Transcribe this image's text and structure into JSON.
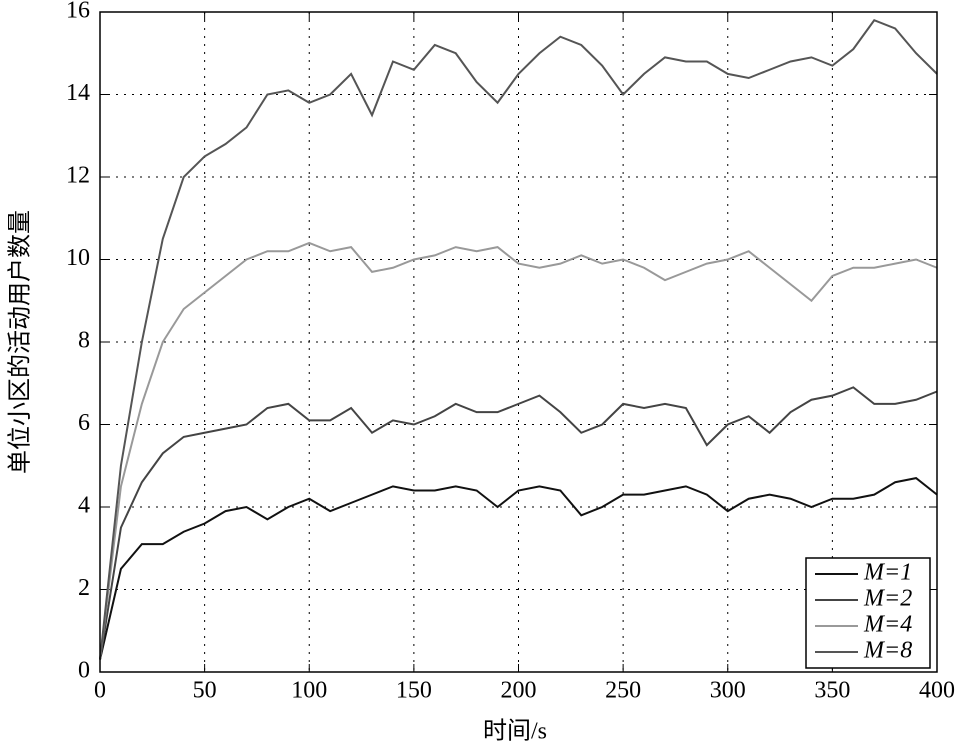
{
  "chart_data": {
    "type": "line",
    "xlabel": "时间/s",
    "ylabel": "单位小区的活动用户数量",
    "x": [
      0,
      10,
      20,
      30,
      40,
      50,
      60,
      70,
      80,
      90,
      100,
      110,
      120,
      130,
      140,
      150,
      160,
      170,
      180,
      190,
      200,
      210,
      220,
      230,
      240,
      250,
      260,
      270,
      280,
      290,
      300,
      310,
      320,
      330,
      340,
      350,
      360,
      370,
      380,
      390,
      400
    ],
    "series": [
      {
        "name": "M=1",
        "color": "#111111",
        "values": [
          0.3,
          2.5,
          3.1,
          3.1,
          3.4,
          3.6,
          3.9,
          4.0,
          3.7,
          4.0,
          4.2,
          3.9,
          4.1,
          4.3,
          4.5,
          4.4,
          4.4,
          4.5,
          4.4,
          4.0,
          4.4,
          4.5,
          4.4,
          3.8,
          4.0,
          4.3,
          4.3,
          4.4,
          4.5,
          4.3,
          3.9,
          4.2,
          4.3,
          4.2,
          4.0,
          4.2,
          4.2,
          4.3,
          4.6,
          4.7,
          4.3
        ]
      },
      {
        "name": "M=2",
        "color": "#444444",
        "values": [
          0.3,
          3.5,
          4.6,
          5.3,
          5.7,
          5.8,
          5.9,
          6.0,
          6.4,
          6.5,
          6.1,
          6.1,
          6.4,
          5.8,
          6.1,
          6.0,
          6.2,
          6.5,
          6.3,
          6.3,
          6.5,
          6.7,
          6.3,
          5.8,
          6.0,
          6.5,
          6.4,
          6.5,
          6.4,
          5.5,
          6.0,
          6.2,
          5.8,
          6.3,
          6.6,
          6.7,
          6.9,
          6.5,
          6.5,
          6.6,
          6.8
        ]
      },
      {
        "name": "M=4",
        "color": "#999999",
        "values": [
          0.3,
          4.5,
          6.5,
          8.0,
          8.8,
          9.2,
          9.6,
          10.0,
          10.2,
          10.2,
          10.4,
          10.2,
          10.3,
          9.7,
          9.8,
          10.0,
          10.1,
          10.3,
          10.2,
          10.3,
          9.9,
          9.8,
          9.9,
          10.1,
          9.9,
          10.0,
          9.8,
          9.5,
          9.7,
          9.9,
          10.0,
          10.2,
          9.8,
          9.4,
          9.0,
          9.6,
          9.8,
          9.8,
          9.9,
          10.0,
          9.8
        ]
      },
      {
        "name": "M=8",
        "color": "#555555",
        "values": [
          0.3,
          5,
          8,
          10.5,
          12,
          12.5,
          12.8,
          13.2,
          14,
          14.1,
          13.8,
          14,
          14.5,
          13.5,
          14.8,
          14.6,
          15.2,
          15.0,
          14.3,
          13.8,
          14.5,
          15.0,
          15.4,
          15.2,
          14.7,
          14.0,
          14.5,
          14.9,
          14.8,
          14.8,
          14.5,
          14.4,
          14.6,
          14.8,
          14.9,
          14.7,
          15.1,
          15.8,
          15.6,
          15.0,
          14.5
        ]
      }
    ],
    "xlim": [
      0,
      400
    ],
    "xticks": [
      0,
      50,
      100,
      150,
      200,
      250,
      300,
      350,
      400
    ],
    "ylim": [
      0,
      16
    ],
    "yticks": [
      0,
      2,
      4,
      6,
      8,
      10,
      12,
      14,
      16
    ],
    "grid": true,
    "legend": "southeast"
  }
}
